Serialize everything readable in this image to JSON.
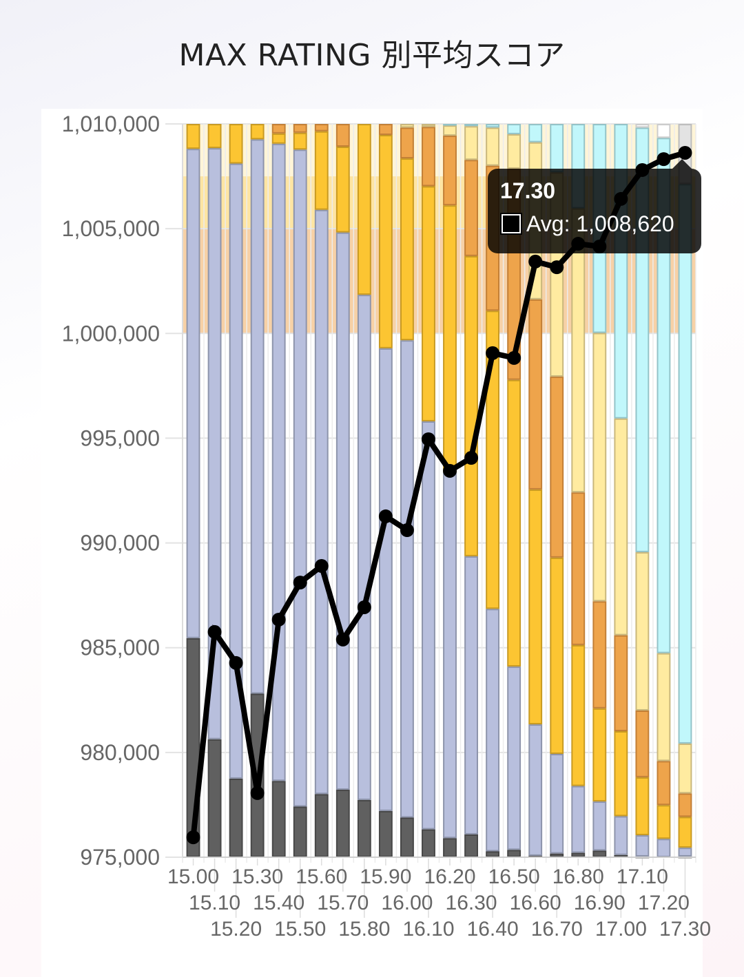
{
  "chart_data": {
    "type": "bar",
    "title": "MAX RATING 別平均スコア",
    "xlabel": "",
    "ylabel": "",
    "ylim": [
      975000,
      1010000
    ],
    "y_ticks": [
      975000,
      980000,
      985000,
      990000,
      995000,
      1000000,
      1005000,
      1010000
    ],
    "y_tick_labels": [
      "975,000",
      "980,000",
      "985,000",
      "990,000",
      "995,000",
      "1,000,000",
      "1,005,000",
      "1,010,000"
    ],
    "grid": true,
    "categories": [
      "15.00",
      "15.10",
      "15.20",
      "15.30",
      "15.40",
      "15.50",
      "15.60",
      "15.70",
      "15.80",
      "15.90",
      "16.00",
      "16.10",
      "16.20",
      "16.30",
      "16.40",
      "16.50",
      "16.60",
      "16.70",
      "16.80",
      "16.90",
      "17.00",
      "17.10",
      "17.20",
      "17.30"
    ],
    "score_bands": [
      {
        "from": 1007500,
        "to": 1010000,
        "color": "#fff5d8"
      },
      {
        "from": 1005000,
        "to": 1007500,
        "color": "#fee5a3"
      },
      {
        "from": 1000000,
        "to": 1005000,
        "color": "#f7d1a6"
      }
    ],
    "stack_series": [
      {
        "name": "dark",
        "color": "#606060",
        "border": "#474747",
        "values": [
          29.9,
          16.1,
          10.7,
          22.3,
          10.4,
          6.9,
          8.6,
          9.2,
          7.8,
          6.3,
          5.4,
          3.8,
          2.6,
          3.1,
          0.8,
          1.0,
          0.2,
          0.5,
          0.6,
          0.9,
          0.3,
          0.1,
          0,
          0.1
        ]
      },
      {
        "name": "lavender",
        "color": "#b8bfdd",
        "border": "#8d94ab",
        "values": [
          66.8,
          80.7,
          83.8,
          75.6,
          86.9,
          89.6,
          79.6,
          76.0,
          68.9,
          63.1,
          65.1,
          55.7,
          49.9,
          37.9,
          33.1,
          25.0,
          17.9,
          13.6,
          9.1,
          6.7,
          5.3,
          2.9,
          2.5,
          1.2
        ]
      },
      {
        "name": "gold",
        "color": "#fcc532",
        "border": "#c89a22",
        "values": [
          3.4,
          3.3,
          5.4,
          2.1,
          1.4,
          2.3,
          10.7,
          11.7,
          23.3,
          29.1,
          24.8,
          32.1,
          36.4,
          40.9,
          40.7,
          39.1,
          32.0,
          26.8,
          19.2,
          12.7,
          11.6,
          7.9,
          4.6,
          4.2
        ]
      },
      {
        "name": "orange",
        "color": "#eea44b",
        "border": "#c27f36",
        "values": [
          0,
          0,
          0,
          0,
          1.3,
          1.2,
          1.0,
          3.1,
          0,
          1.5,
          4.2,
          8.1,
          9.5,
          13.1,
          19.8,
          28.8,
          25.9,
          24.7,
          20.8,
          14.6,
          13.1,
          9.1,
          6.0,
          3.2
        ]
      },
      {
        "name": "light-yellow",
        "color": "#ffeba0",
        "border": "#c9b77c",
        "values": [
          0,
          0,
          0,
          0,
          0,
          0,
          0,
          0,
          0,
          0,
          0.5,
          0.4,
          1.4,
          4.6,
          5.2,
          4.7,
          21.4,
          27.9,
          38.7,
          36.6,
          29.6,
          21.6,
          14.7,
          6.8
        ]
      },
      {
        "name": "cyan",
        "color": "#c1f7fb",
        "border": "#93c3c8",
        "values": [
          0,
          0,
          0,
          0,
          0,
          0,
          0,
          0,
          0,
          0,
          0,
          0,
          0.2,
          0.3,
          0.5,
          1.4,
          2.5,
          6.6,
          11.5,
          28.5,
          40.2,
          57.9,
          70.2,
          76.3
        ]
      },
      {
        "name": "white",
        "color": "#ffffff",
        "border": "#cccccc",
        "values": [
          0,
          0,
          0,
          0,
          0,
          0,
          0,
          0,
          0,
          0,
          0,
          0,
          0,
          0,
          0,
          0,
          0,
          0,
          0,
          0,
          0,
          0.5,
          1.9,
          0
        ]
      },
      {
        "name": "gray",
        "color": "#e3e3e3",
        "border": "#bdbdbd",
        "values": [
          0,
          0,
          0,
          0,
          0,
          0,
          0,
          0,
          0,
          0,
          0,
          0,
          0,
          0,
          0,
          0,
          0,
          0,
          0,
          0,
          0,
          0,
          0,
          8.2
        ]
      }
    ],
    "line_series": {
      "name": "Avg",
      "color": "#000000",
      "values": [
        975950,
        985750,
        984270,
        978060,
        986340,
        988110,
        988900,
        985390,
        986930,
        991270,
        990610,
        994950,
        993440,
        994060,
        999060,
        998830,
        1003430,
        1003160,
        1004280,
        1004150,
        1006420,
        1007800,
        1008320,
        1008620
      ]
    },
    "tooltip": {
      "title": "17.30",
      "label": "Avg: 1,008,620"
    },
    "legend": "none"
  }
}
